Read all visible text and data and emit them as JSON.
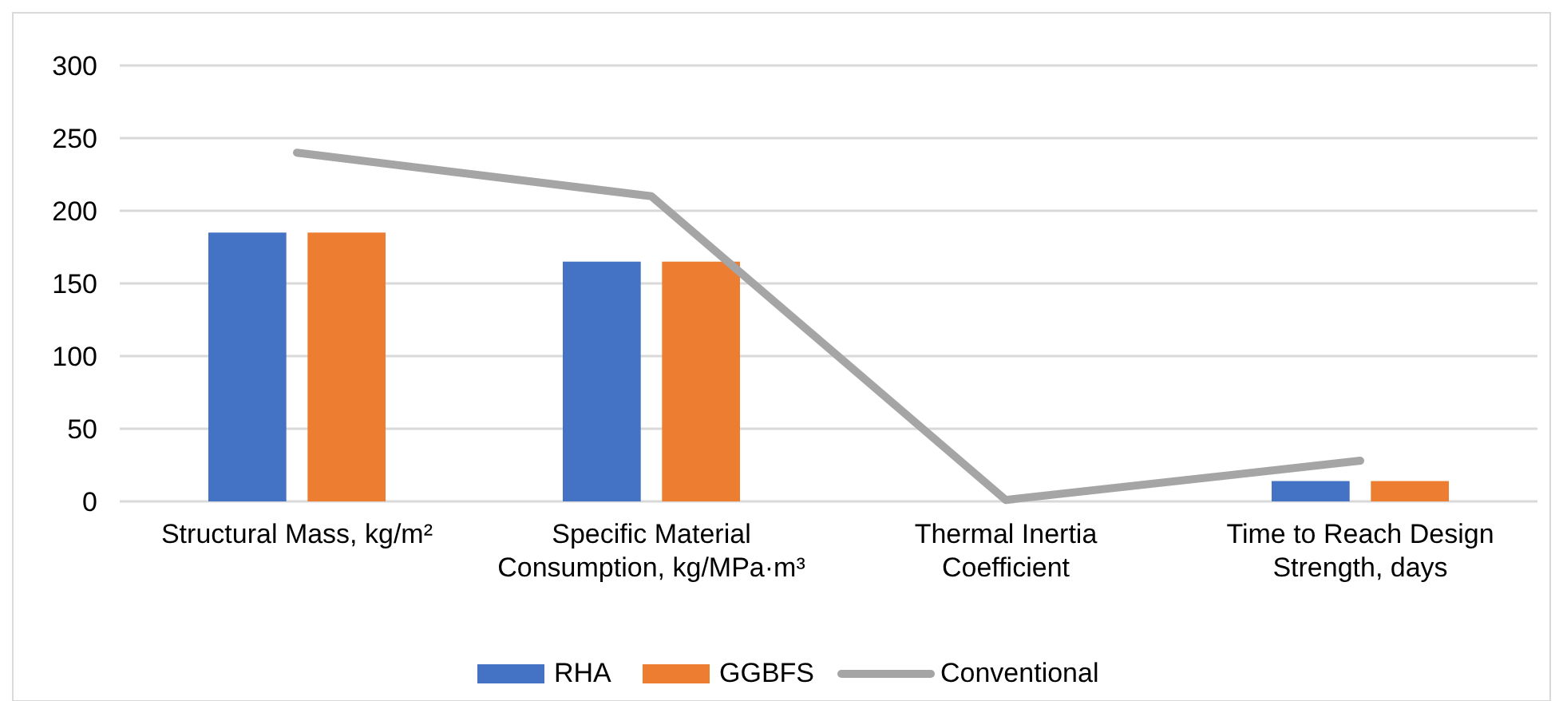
{
  "chart_data": {
    "type": "bar",
    "categories": [
      "Structural Mass, kg/m²",
      "Specific Material Consumption, kg/MPa·m³",
      "Thermal Inertia Coefficient",
      "Time to Reach Design Strength, days"
    ],
    "series": [
      {
        "name": "RHA",
        "color": "#4472c4",
        "values": [
          185,
          165,
          0,
          14
        ]
      },
      {
        "name": "GGBFS",
        "color": "#ed7d31",
        "values": [
          185,
          165,
          0,
          14
        ]
      },
      {
        "name": "Conventional",
        "type": "line",
        "color": "#a5a5a5",
        "values": [
          240,
          210,
          1,
          28
        ]
      }
    ],
    "ylim": [
      0,
      300
    ],
    "yticks": [
      0,
      50,
      100,
      150,
      200,
      250,
      300
    ],
    "grid": "y",
    "legend": "bottom"
  }
}
